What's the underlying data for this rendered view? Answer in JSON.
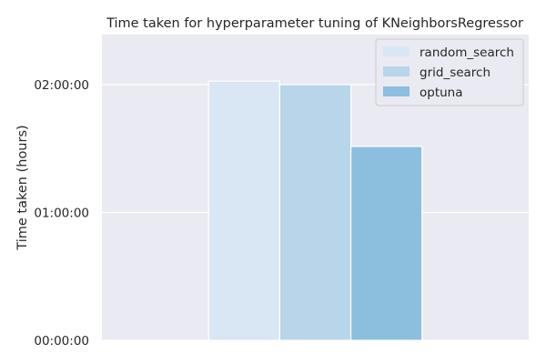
{
  "chart_data": {
    "type": "bar",
    "title": "Time taken for hyperparameter tuning of KNeighborsRegressor",
    "xlabel": "",
    "ylabel": "Time taken (hours)",
    "y_unit": "seconds",
    "ylim": [
      0,
      8610
    ],
    "yticks": [
      {
        "value": 0,
        "label": "00:00:00"
      },
      {
        "value": 3600,
        "label": "01:00:00"
      },
      {
        "value": 7200,
        "label": "02:00:00"
      }
    ],
    "x_tick_labels": [],
    "grid": true,
    "legend_position": "top-right",
    "series": [
      {
        "name": "random_search",
        "value": 7300,
        "color": "#d9e7f5"
      },
      {
        "name": "grid_search",
        "value": 7200,
        "color": "#b8d5ea"
      },
      {
        "name": "optuna",
        "value": 5460,
        "color": "#8bbfdd"
      }
    ]
  },
  "colors": {
    "plot_background": "#eaeaf2",
    "grid": "#ffffff",
    "bar_edge": "#ffffff",
    "text": "#262626"
  }
}
